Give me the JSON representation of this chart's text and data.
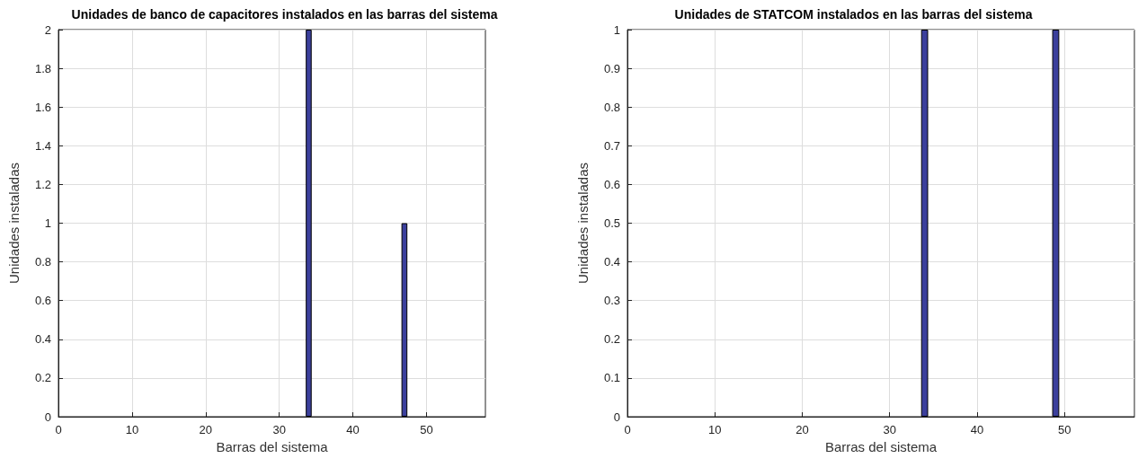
{
  "chart_data": [
    {
      "type": "bar",
      "title": "Unidades de banco de capacitores instalados en las barras del sistema",
      "xlabel": "Barras del sistema",
      "ylabel": "Unidades instaladas",
      "color": "#3b3f9c",
      "x": [
        1,
        2,
        3,
        4,
        5,
        6,
        7,
        8,
        9,
        10,
        11,
        12,
        13,
        14,
        15,
        16,
        17,
        18,
        19,
        20,
        21,
        22,
        23,
        24,
        25,
        26,
        27,
        28,
        29,
        30,
        31,
        32,
        33,
        34,
        35,
        36,
        37,
        38,
        39,
        40,
        41,
        42,
        43,
        44,
        45,
        46,
        47,
        48,
        49,
        50,
        51,
        52,
        53,
        54,
        55,
        56,
        57
      ],
      "values": [
        0,
        0,
        0,
        0,
        0,
        0,
        0,
        0,
        0,
        0,
        0,
        0,
        0,
        0,
        0,
        0,
        0,
        0,
        0,
        0,
        0,
        0,
        0,
        0,
        0,
        0,
        0,
        0,
        0,
        0,
        0,
        0,
        0,
        2,
        0,
        0,
        0,
        0,
        0,
        0,
        0,
        0,
        0,
        0,
        0,
        0,
        1,
        0,
        0,
        0,
        0,
        0,
        0,
        0,
        0,
        0,
        0
      ],
      "xlim": [
        0,
        58
      ],
      "xticks": [
        0,
        10,
        20,
        30,
        40,
        50
      ],
      "ylim": [
        0,
        2
      ],
      "yticks": [
        0,
        0.2,
        0.4,
        0.6,
        0.8,
        1,
        1.2,
        1.4,
        1.6,
        1.8,
        2
      ],
      "grid": true
    },
    {
      "type": "bar",
      "title": "Unidades de STATCOM instalados en las barras del sistema",
      "xlabel": "Barras del sistema",
      "ylabel": "Unidades instaladas",
      "color": "#3b3f9c",
      "x": [
        1,
        2,
        3,
        4,
        5,
        6,
        7,
        8,
        9,
        10,
        11,
        12,
        13,
        14,
        15,
        16,
        17,
        18,
        19,
        20,
        21,
        22,
        23,
        24,
        25,
        26,
        27,
        28,
        29,
        30,
        31,
        32,
        33,
        34,
        35,
        36,
        37,
        38,
        39,
        40,
        41,
        42,
        43,
        44,
        45,
        46,
        47,
        48,
        49,
        50,
        51,
        52,
        53,
        54,
        55,
        56,
        57
      ],
      "values": [
        0,
        0,
        0,
        0,
        0,
        0,
        0,
        0,
        0,
        0,
        0,
        0,
        0,
        0,
        0,
        0,
        0,
        0,
        0,
        0,
        0,
        0,
        0,
        0,
        0,
        0,
        0,
        0,
        0,
        0,
        0,
        0,
        0,
        1,
        0,
        0,
        0,
        0,
        0,
        0,
        0,
        0,
        0,
        0,
        0,
        0,
        0,
        0,
        1,
        0,
        0,
        0,
        0,
        0,
        0,
        0,
        0
      ],
      "xlim": [
        0,
        58
      ],
      "xticks": [
        0,
        10,
        20,
        30,
        40,
        50
      ],
      "ylim": [
        0,
        1
      ],
      "yticks": [
        0,
        0.1,
        0.2,
        0.3,
        0.4,
        0.5,
        0.6,
        0.7,
        0.8,
        0.9,
        1
      ],
      "grid": true
    }
  ]
}
